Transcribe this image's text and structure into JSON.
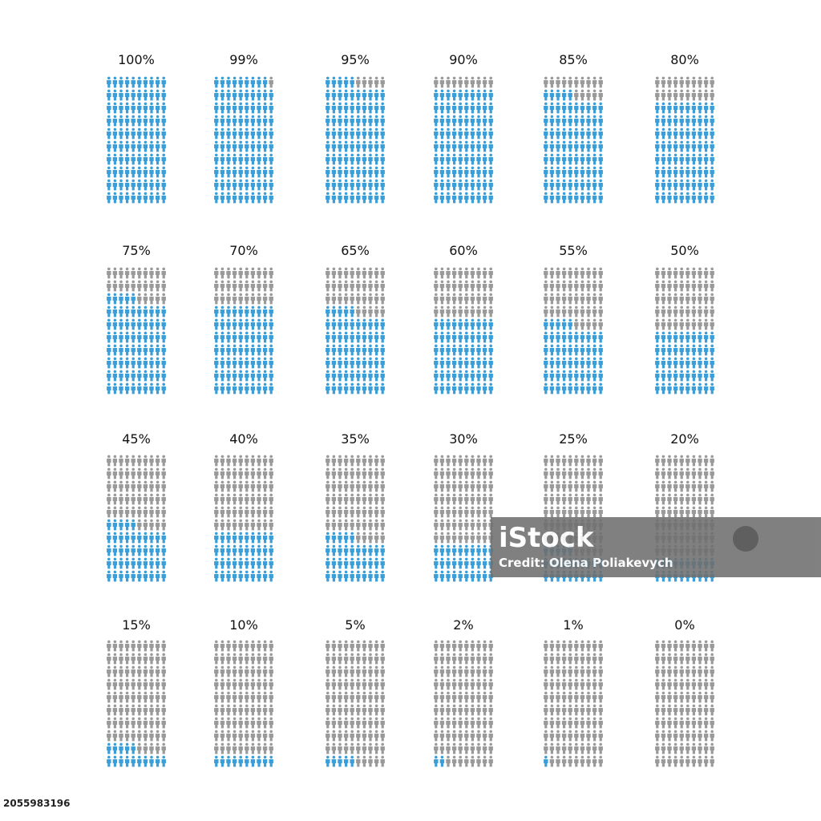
{
  "chart_data": [
    {
      "type": "pictogram",
      "title": "100%",
      "value": 100,
      "color": "#3a9fd9",
      "empty_color": "#9a9a9a"
    },
    {
      "type": "pictogram",
      "title": "99%",
      "value": 99,
      "color": "#3a9fd9",
      "empty_color": "#9a9a9a"
    },
    {
      "type": "pictogram",
      "title": "95%",
      "value": 95,
      "color": "#3a9fd9",
      "empty_color": "#9a9a9a"
    },
    {
      "type": "pictogram",
      "title": "90%",
      "value": 90,
      "color": "#3a9fd9",
      "empty_color": "#9a9a9a"
    },
    {
      "type": "pictogram",
      "title": "85%",
      "value": 85,
      "color": "#3a9fd9",
      "empty_color": "#9a9a9a"
    },
    {
      "type": "pictogram",
      "title": "80%",
      "value": 80,
      "color": "#3a9fd9",
      "empty_color": "#9a9a9a"
    },
    {
      "type": "pictogram",
      "title": "75%",
      "value": 75,
      "color": "#3a9fd9",
      "empty_color": "#9a9a9a"
    },
    {
      "type": "pictogram",
      "title": "70%",
      "value": 70,
      "color": "#3a9fd9",
      "empty_color": "#9a9a9a"
    },
    {
      "type": "pictogram",
      "title": "65%",
      "value": 65,
      "color": "#3a9fd9",
      "empty_color": "#9a9a9a"
    },
    {
      "type": "pictogram",
      "title": "60%",
      "value": 60,
      "color": "#3a9fd9",
      "empty_color": "#9a9a9a"
    },
    {
      "type": "pictogram",
      "title": "55%",
      "value": 55,
      "color": "#3a9fd9",
      "empty_color": "#9a9a9a"
    },
    {
      "type": "pictogram",
      "title": "50%",
      "value": 50,
      "color": "#3a9fd9",
      "empty_color": "#9a9a9a"
    },
    {
      "type": "pictogram",
      "title": "45%",
      "value": 45,
      "color": "#3a9fd9",
      "empty_color": "#9a9a9a"
    },
    {
      "type": "pictogram",
      "title": "40%",
      "value": 40,
      "color": "#3a9fd9",
      "empty_color": "#9a9a9a"
    },
    {
      "type": "pictogram",
      "title": "35%",
      "value": 35,
      "color": "#3a9fd9",
      "empty_color": "#9a9a9a"
    },
    {
      "type": "pictogram",
      "title": "30%",
      "value": 30,
      "color": "#3a9fd9",
      "empty_color": "#9a9a9a"
    },
    {
      "type": "pictogram",
      "title": "25%",
      "value": 25,
      "color": "#3a9fd9",
      "empty_color": "#9a9a9a"
    },
    {
      "type": "pictogram",
      "title": "20%",
      "value": 20,
      "color": "#3a9fd9",
      "empty_color": "#9a9a9a"
    },
    {
      "type": "pictogram",
      "title": "15%",
      "value": 15,
      "color": "#3a9fd9",
      "empty_color": "#9a9a9a"
    },
    {
      "type": "pictogram",
      "title": "10%",
      "value": 10,
      "color": "#3a9fd9",
      "empty_color": "#9a9a9a"
    },
    {
      "type": "pictogram",
      "title": "5%",
      "value": 5,
      "color": "#3a9fd9",
      "empty_color": "#9a9a9a"
    },
    {
      "type": "pictogram",
      "title": "2%",
      "value": 2,
      "color": "#3a9fd9",
      "empty_color": "#9a9a9a"
    },
    {
      "type": "pictogram",
      "title": "1%",
      "value": 1,
      "color": "#3a9fd9",
      "empty_color": "#9a9a9a"
    },
    {
      "type": "pictogram",
      "title": "0%",
      "value": 0,
      "color": "#3a9fd9",
      "empty_color": "#9a9a9a"
    }
  ],
  "watermark": {
    "brand": "iStock",
    "credit": "Credit: Olena Poliakevych",
    "id": "2055983196"
  }
}
